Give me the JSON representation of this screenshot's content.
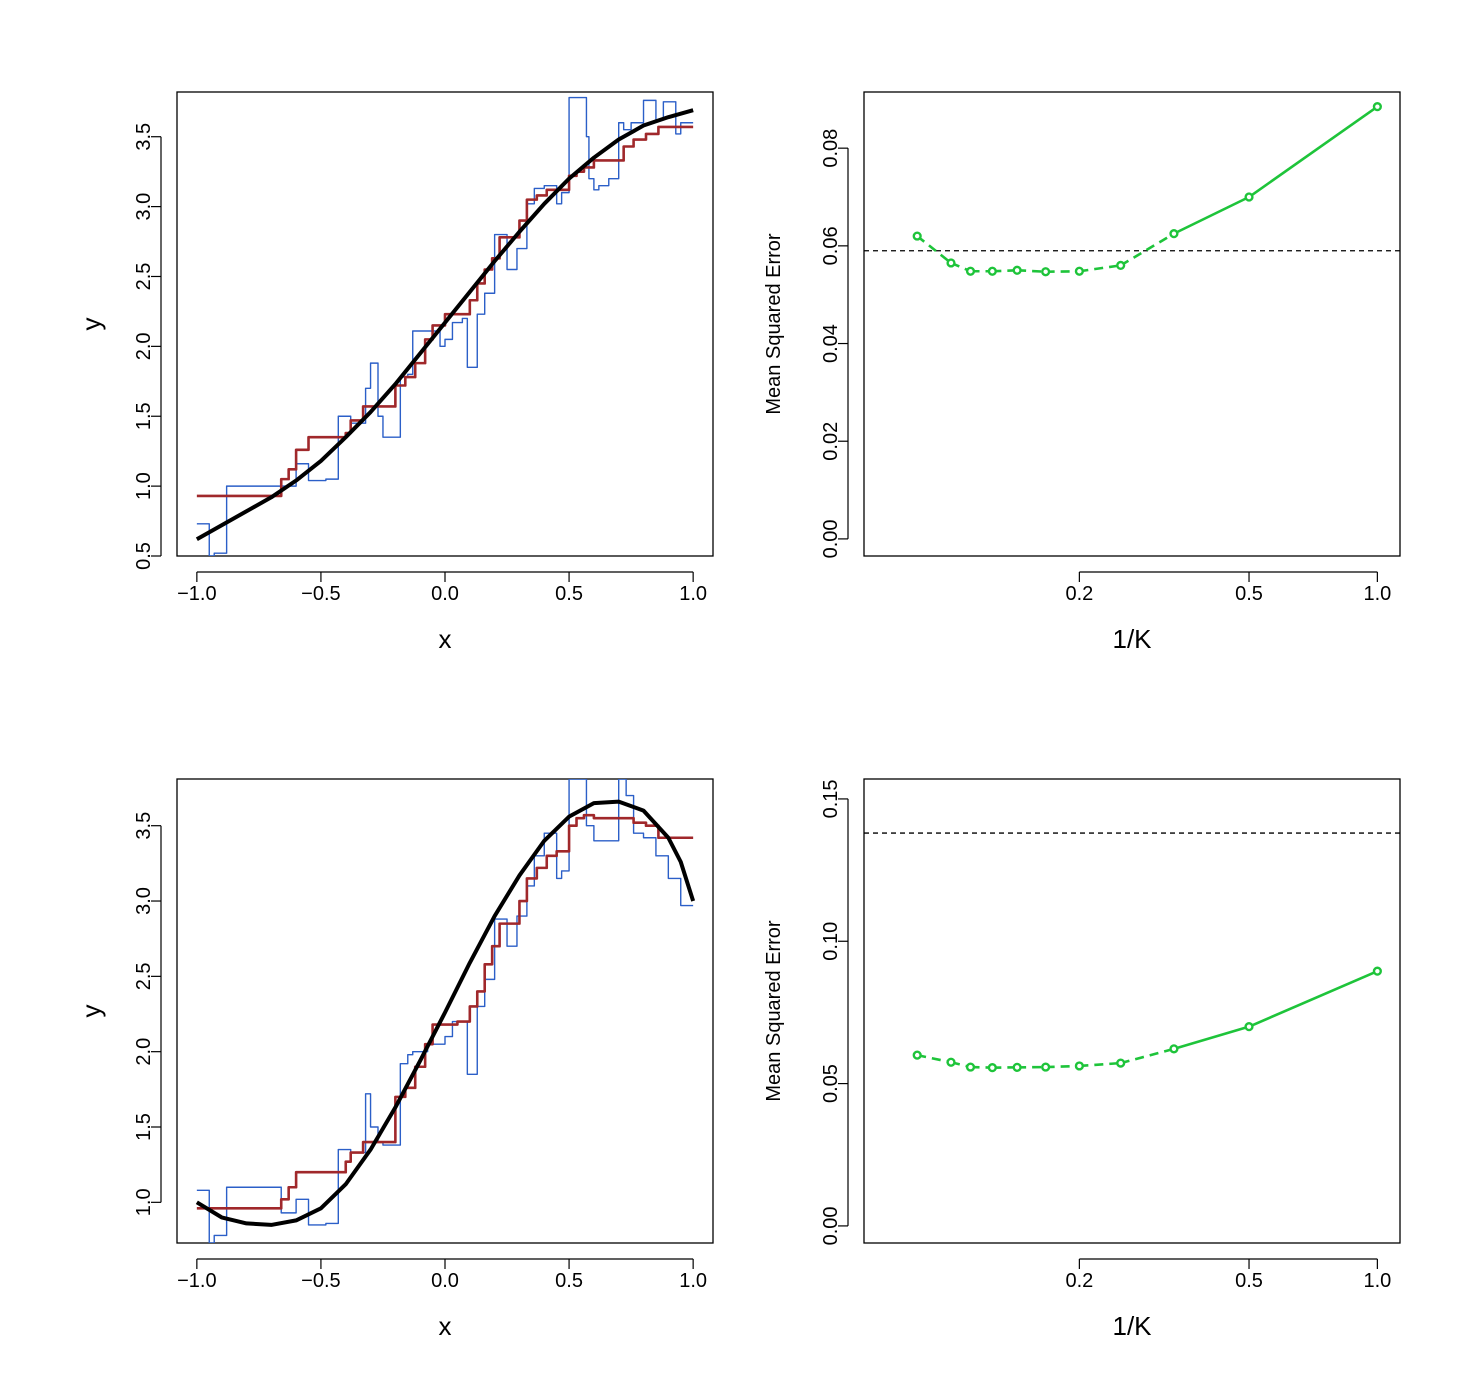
{
  "chart_data": [
    {
      "id": "fit-top",
      "type": "line",
      "title": "",
      "xlabel": "x",
      "ylabel": "y",
      "xlim": [
        -1.08,
        1.08
      ],
      "ylim": [
        0.5,
        3.82
      ],
      "xticks": [
        -1.0,
        -0.5,
        0.0,
        0.5,
        1.0
      ],
      "xtick_labels": [
        "−1.0",
        "−0.5",
        "0.0",
        "0.5",
        "1.0"
      ],
      "yticks": [
        0.5,
        1.0,
        1.5,
        2.0,
        2.5,
        3.0,
        3.5
      ],
      "ytick_labels": [
        "0.5",
        "1.0",
        "1.5",
        "2.0",
        "2.5",
        "3.0",
        "3.5"
      ],
      "grid": false,
      "colors": {
        "true": "#000000",
        "knn_k9": "#a0282b",
        "knn_k1": "#2b5fc8"
      },
      "series": [
        {
          "key": "true",
          "kind": "curve",
          "x": [
            -1.0,
            -0.9,
            -0.8,
            -0.7,
            -0.6,
            -0.5,
            -0.4,
            -0.3,
            -0.2,
            -0.1,
            0.0,
            0.1,
            0.2,
            0.3,
            0.4,
            0.5,
            0.6,
            0.7,
            0.8,
            0.9,
            1.0
          ],
          "y": [
            0.62,
            0.72,
            0.82,
            0.92,
            1.04,
            1.18,
            1.35,
            1.53,
            1.73,
            1.95,
            2.17,
            2.39,
            2.61,
            2.82,
            3.02,
            3.2,
            3.35,
            3.48,
            3.58,
            3.64,
            3.69
          ]
        },
        {
          "key": "knn_k9",
          "kind": "step",
          "x": [
            -1.0,
            -0.7,
            -0.66,
            -0.63,
            -0.6,
            -0.55,
            -0.45,
            -0.4,
            -0.38,
            -0.33,
            -0.25,
            -0.2,
            -0.16,
            -0.12,
            -0.08,
            -0.05,
            0.0,
            0.05,
            0.1,
            0.13,
            0.16,
            0.19,
            0.22,
            0.26,
            0.3,
            0.33,
            0.37,
            0.41,
            0.45,
            0.5,
            0.53,
            0.56,
            0.6,
            0.66,
            0.72,
            0.76,
            0.81,
            0.86,
            1.0
          ],
          "y": [
            0.93,
            0.93,
            1.05,
            1.12,
            1.26,
            1.35,
            1.35,
            1.38,
            1.47,
            1.57,
            1.57,
            1.72,
            1.78,
            1.88,
            2.05,
            2.15,
            2.23,
            2.23,
            2.33,
            2.45,
            2.55,
            2.63,
            2.78,
            2.78,
            2.9,
            3.05,
            3.08,
            3.12,
            3.12,
            3.22,
            3.25,
            3.28,
            3.33,
            3.33,
            3.43,
            3.48,
            3.52,
            3.57,
            3.57
          ]
        },
        {
          "key": "knn_k1",
          "kind": "step",
          "x": [
            -1.0,
            -0.97,
            -0.95,
            -0.93,
            -0.88,
            -0.66,
            -0.6,
            -0.55,
            -0.48,
            -0.43,
            -0.38,
            -0.32,
            -0.3,
            -0.27,
            -0.25,
            -0.18,
            -0.15,
            -0.13,
            -0.07,
            -0.02,
            0.0,
            0.03,
            0.07,
            0.09,
            0.13,
            0.16,
            0.2,
            0.25,
            0.29,
            0.33,
            0.36,
            0.4,
            0.45,
            0.47,
            0.5,
            0.54,
            0.57,
            0.58,
            0.6,
            0.62,
            0.66,
            0.7,
            0.72,
            0.75,
            0.8,
            0.85,
            0.88,
            0.93,
            0.95,
            1.0
          ],
          "y": [
            0.73,
            0.73,
            0.5,
            0.52,
            1.0,
            1.0,
            1.16,
            1.04,
            1.05,
            1.5,
            1.45,
            1.7,
            1.88,
            1.5,
            1.35,
            1.78,
            1.8,
            2.11,
            2.11,
            2.0,
            2.05,
            2.17,
            2.2,
            1.85,
            2.23,
            2.38,
            2.8,
            2.55,
            2.7,
            3.02,
            3.13,
            3.15,
            3.02,
            3.1,
            3.78,
            3.78,
            3.5,
            3.2,
            3.12,
            3.15,
            3.2,
            3.6,
            3.55,
            3.6,
            3.76,
            3.62,
            3.75,
            3.52,
            3.6,
            3.6
          ]
        }
      ]
    },
    {
      "id": "mse-top",
      "type": "line",
      "title": "",
      "xlabel": "1/K",
      "ylabel": "Mean Squared Error",
      "xscale": "log",
      "xlim": [
        0.0625,
        1.13
      ],
      "ylim": [
        -0.0035,
        0.0915
      ],
      "xticks": [
        0.2,
        0.5,
        1.0
      ],
      "xtick_labels": [
        "0.2",
        "0.5",
        "1.0"
      ],
      "yticks": [
        0.0,
        0.02,
        0.04,
        0.06,
        0.08
      ],
      "ytick_labels": [
        "0.00",
        "0.02",
        "0.04",
        "0.06",
        "0.08"
      ],
      "grid": false,
      "reference_line": {
        "y": 0.059,
        "style": "dashed",
        "color": "#000000"
      },
      "line_color": "#1ec43a",
      "x": [
        0.0833,
        0.1,
        0.1111,
        0.125,
        0.1429,
        0.1667,
        0.2,
        0.25,
        0.3333,
        0.5,
        1.0
      ],
      "y": [
        0.062,
        0.0565,
        0.0548,
        0.0548,
        0.055,
        0.0547,
        0.0548,
        0.056,
        0.0625,
        0.07,
        0.0885
      ]
    },
    {
      "id": "fit-bottom",
      "type": "line",
      "title": "",
      "xlabel": "x",
      "ylabel": "y",
      "xlim": [
        -1.08,
        1.08
      ],
      "ylim": [
        0.73,
        3.81
      ],
      "xticks": [
        -1.0,
        -0.5,
        0.0,
        0.5,
        1.0
      ],
      "xtick_labels": [
        "−1.0",
        "−0.5",
        "0.0",
        "0.5",
        "1.0"
      ],
      "yticks": [
        1.0,
        1.5,
        2.0,
        2.5,
        3.0,
        3.5
      ],
      "ytick_labels": [
        "1.0",
        "1.5",
        "2.0",
        "2.5",
        "3.0",
        "3.5"
      ],
      "grid": false,
      "colors": {
        "true": "#000000",
        "knn_k9": "#a0282b",
        "knn_k1": "#2b5fc8"
      },
      "series": [
        {
          "key": "true",
          "kind": "curve",
          "x": [
            -1.0,
            -0.9,
            -0.8,
            -0.7,
            -0.6,
            -0.5,
            -0.4,
            -0.3,
            -0.2,
            -0.1,
            0.0,
            0.1,
            0.2,
            0.3,
            0.4,
            0.5,
            0.6,
            0.7,
            0.8,
            0.9,
            0.95,
            1.0
          ],
          "y": [
            1.0,
            0.9,
            0.86,
            0.85,
            0.88,
            0.96,
            1.12,
            1.35,
            1.63,
            1.94,
            2.26,
            2.59,
            2.9,
            3.17,
            3.4,
            3.56,
            3.65,
            3.66,
            3.6,
            3.42,
            3.26,
            3.0
          ]
        },
        {
          "key": "knn_k9",
          "kind": "step",
          "x": [
            -1.0,
            -0.7,
            -0.66,
            -0.63,
            -0.6,
            -0.55,
            -0.45,
            -0.4,
            -0.38,
            -0.33,
            -0.25,
            -0.2,
            -0.16,
            -0.12,
            -0.08,
            -0.05,
            0.0,
            0.05,
            0.1,
            0.13,
            0.16,
            0.19,
            0.22,
            0.26,
            0.3,
            0.33,
            0.37,
            0.41,
            0.45,
            0.5,
            0.53,
            0.56,
            0.6,
            0.66,
            0.72,
            0.76,
            0.81,
            0.86,
            1.0
          ],
          "y": [
            0.96,
            0.96,
            1.02,
            1.1,
            1.2,
            1.2,
            1.2,
            1.27,
            1.33,
            1.4,
            1.4,
            1.7,
            1.76,
            1.9,
            2.05,
            2.18,
            2.18,
            2.2,
            2.3,
            2.4,
            2.58,
            2.7,
            2.85,
            2.85,
            3.0,
            3.15,
            3.22,
            3.3,
            3.33,
            3.5,
            3.55,
            3.57,
            3.55,
            3.55,
            3.55,
            3.52,
            3.5,
            3.42,
            3.42
          ]
        },
        {
          "key": "knn_k1",
          "kind": "step",
          "x": [
            -1.0,
            -0.97,
            -0.95,
            -0.93,
            -0.88,
            -0.7,
            -0.66,
            -0.6,
            -0.55,
            -0.48,
            -0.43,
            -0.38,
            -0.32,
            -0.3,
            -0.27,
            -0.25,
            -0.18,
            -0.15,
            -0.13,
            -0.07,
            -0.02,
            0.0,
            0.03,
            0.07,
            0.09,
            0.13,
            0.16,
            0.2,
            0.25,
            0.29,
            0.33,
            0.36,
            0.4,
            0.45,
            0.47,
            0.5,
            0.54,
            0.57,
            0.6,
            0.66,
            0.7,
            0.73,
            0.76,
            0.8,
            0.85,
            0.9,
            0.95,
            1.0
          ],
          "y": [
            1.08,
            1.08,
            0.73,
            0.78,
            1.1,
            1.1,
            0.93,
            1.02,
            0.85,
            0.86,
            1.35,
            1.33,
            1.72,
            1.5,
            1.4,
            1.38,
            1.92,
            1.98,
            2.0,
            2.05,
            2.05,
            2.1,
            2.2,
            2.2,
            1.85,
            2.3,
            2.48,
            2.88,
            2.7,
            2.9,
            3.1,
            3.3,
            3.45,
            3.15,
            3.2,
            3.81,
            3.81,
            3.5,
            3.4,
            3.4,
            3.81,
            3.7,
            3.45,
            3.42,
            3.3,
            3.15,
            2.97,
            2.97
          ]
        }
      ]
    },
    {
      "id": "mse-bottom",
      "type": "line",
      "title": "",
      "xlabel": "1/K",
      "ylabel": "Mean Squared Error",
      "xscale": "log",
      "xlim": [
        0.0625,
        1.13
      ],
      "ylim": [
        -0.006,
        0.157
      ],
      "xticks": [
        0.2,
        0.5,
        1.0
      ],
      "xtick_labels": [
        "0.2",
        "0.5",
        "1.0"
      ],
      "yticks": [
        0.0,
        0.05,
        0.1,
        0.15
      ],
      "ytick_labels": [
        "0.00",
        "0.05",
        "0.10",
        "0.15"
      ],
      "grid": false,
      "reference_line": {
        "y": 0.138,
        "style": "dashed",
        "color": "#000000"
      },
      "line_color": "#1ec43a",
      "x": [
        0.0833,
        0.1,
        0.1111,
        0.125,
        0.1429,
        0.1667,
        0.2,
        0.25,
        0.3333,
        0.5,
        1.0
      ],
      "y": [
        0.06,
        0.0575,
        0.0558,
        0.0556,
        0.0557,
        0.0558,
        0.0562,
        0.0572,
        0.0622,
        0.07,
        0.0895
      ]
    }
  ]
}
